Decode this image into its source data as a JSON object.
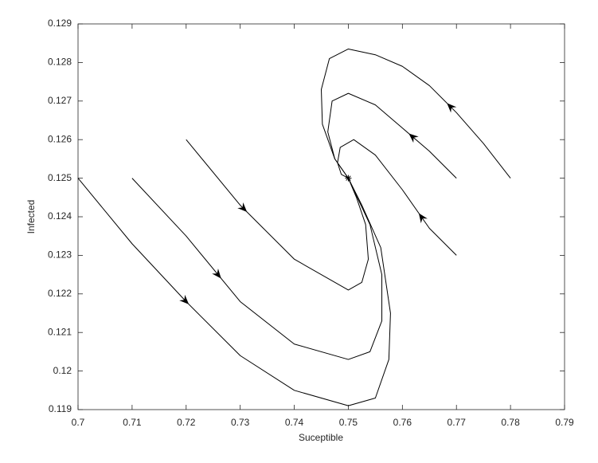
{
  "chart_data": {
    "type": "line",
    "x_label": "Suceptible",
    "y_label": "Infected",
    "xlim": [
      0.7,
      0.79
    ],
    "xticks": [
      0.7,
      0.71,
      0.72,
      0.73,
      0.74,
      0.75,
      0.76,
      0.77,
      0.78,
      0.79
    ],
    "ylim": [
      0.119,
      0.129
    ],
    "yticks": [
      0.119,
      0.12,
      0.121,
      0.122,
      0.123,
      0.124,
      0.125,
      0.126,
      0.127,
      0.128,
      0.129
    ],
    "grid": false,
    "series": [
      {
        "color": "#000000",
        "x": [
          0.7,
          0.71,
          0.72,
          0.73,
          0.74,
          0.75,
          0.755,
          0.7575,
          0.7578,
          0.756,
          0.7525,
          0.75
        ],
        "values": [
          0.125,
          0.1233,
          0.1218,
          0.1204,
          0.1195,
          0.1191,
          0.1193,
          0.1203,
          0.1215,
          0.1232,
          0.1243,
          0.125
        ]
      },
      {
        "color": "#000000",
        "x": [
          0.71,
          0.72,
          0.73,
          0.74,
          0.75,
          0.754,
          0.7562,
          0.7562,
          0.754,
          0.75
        ],
        "values": [
          0.125,
          0.1235,
          0.1218,
          0.1207,
          0.1203,
          0.1205,
          0.1213,
          0.1225,
          0.1238,
          0.125
        ]
      },
      {
        "color": "#000000",
        "x": [
          0.72,
          0.73,
          0.74,
          0.75,
          0.7525,
          0.7537,
          0.7532,
          0.7515,
          0.75
        ],
        "values": [
          0.126,
          0.1243,
          0.1229,
          0.1221,
          0.1223,
          0.1229,
          0.1238,
          0.1245,
          0.125
        ]
      },
      {
        "color": "#000000",
        "x": [
          0.77,
          0.765,
          0.76,
          0.755,
          0.751,
          0.7485,
          0.748,
          0.7487,
          0.75
        ],
        "values": [
          0.123,
          0.1237,
          0.1247,
          0.1256,
          0.126,
          0.1258,
          0.1254,
          0.1251,
          0.125
        ]
      },
      {
        "color": "#000000",
        "x": [
          0.77,
          0.765,
          0.76,
          0.755,
          0.75,
          0.747,
          0.7462,
          0.7475,
          0.75
        ],
        "values": [
          0.125,
          0.1257,
          0.1263,
          0.1269,
          0.1272,
          0.127,
          0.1262,
          0.1255,
          0.125
        ]
      },
      {
        "color": "#000000",
        "x": [
          0.78,
          0.775,
          0.77,
          0.765,
          0.76,
          0.755,
          0.75,
          0.7465,
          0.745,
          0.7452,
          0.7475,
          0.75
        ],
        "values": [
          0.125,
          0.1259,
          0.1267,
          0.1274,
          0.1279,
          0.1282,
          0.12835,
          0.1281,
          0.1273,
          0.1264,
          0.1255,
          0.125
        ]
      }
    ]
  }
}
